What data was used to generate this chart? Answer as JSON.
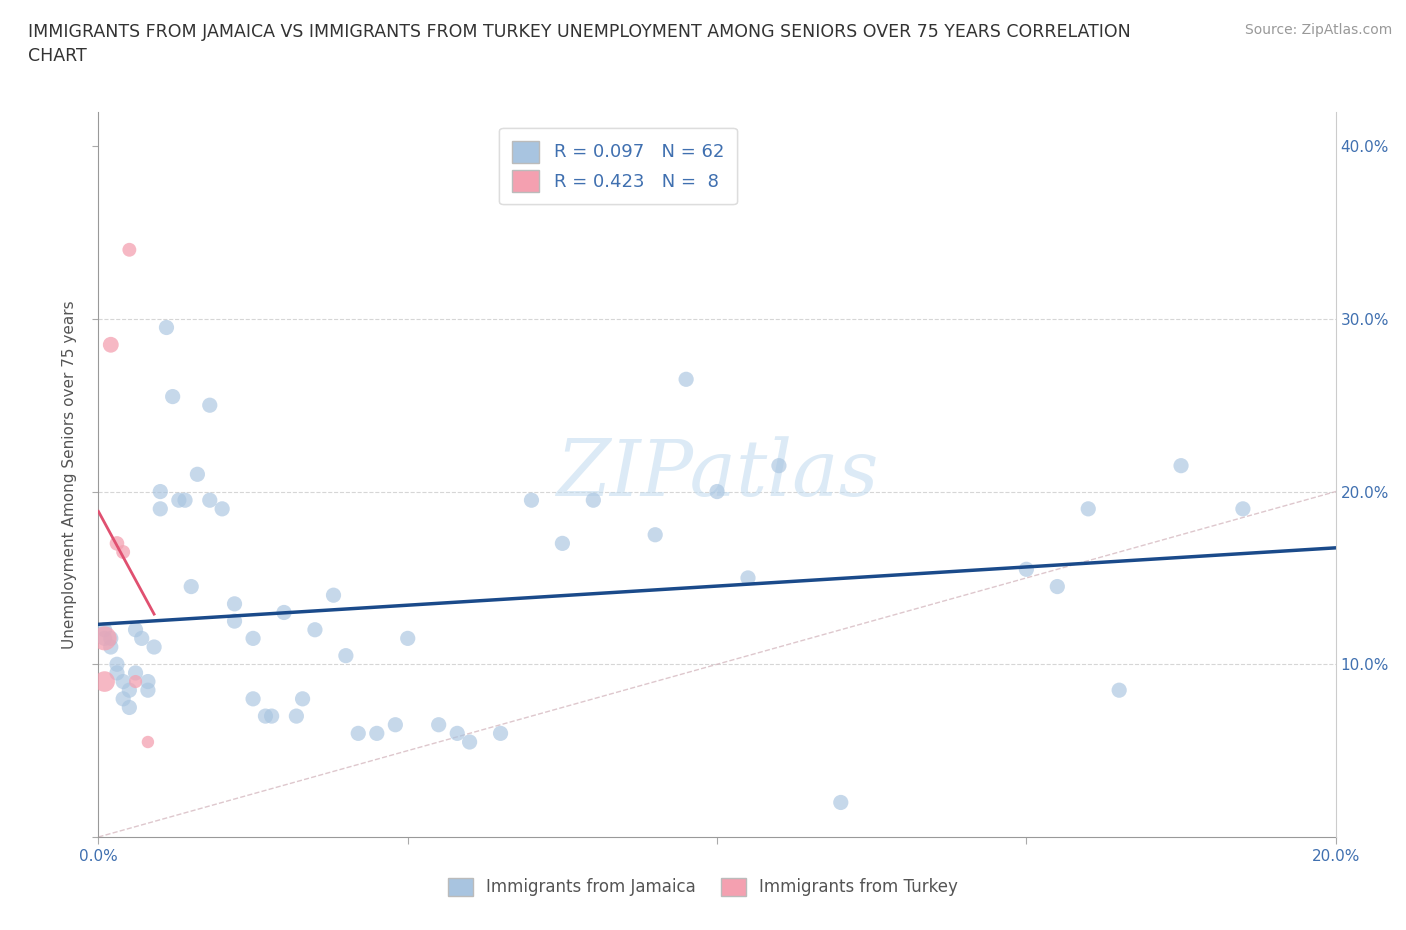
{
  "title": "IMMIGRANTS FROM JAMAICA VS IMMIGRANTS FROM TURKEY UNEMPLOYMENT AMONG SENIORS OVER 75 YEARS CORRELATION\nCHART",
  "source_text": "Source: ZipAtlas.com",
  "ylabel": "Unemployment Among Seniors over 75 years",
  "watermark": "ZIPatlas",
  "xlim": [
    0.0,
    0.2
  ],
  "ylim": [
    0.0,
    0.42
  ],
  "xticks": [
    0.0,
    0.05,
    0.1,
    0.15,
    0.2
  ],
  "yticks": [
    0.0,
    0.1,
    0.2,
    0.3,
    0.4
  ],
  "xtick_labels_bottom": [
    "0.0%",
    "",
    "",
    "",
    "20.0%"
  ],
  "ytick_labels_right": [
    "",
    "10.0%",
    "20.0%",
    "30.0%",
    "40.0%"
  ],
  "jamaica_color": "#a8c4e0",
  "turkey_color": "#f4a0b0",
  "jamaica_line_color": "#1a4a8a",
  "turkey_line_color": "#e05070",
  "diagonal_color": "#d0b0b8",
  "R_jamaica": 0.097,
  "N_jamaica": 62,
  "R_turkey": 0.423,
  "N_turkey": 8,
  "legend_labels": [
    "Immigrants from Jamaica",
    "Immigrants from Turkey"
  ],
  "jamaica_x": [
    0.001,
    0.001,
    0.002,
    0.002,
    0.003,
    0.003,
    0.004,
    0.004,
    0.005,
    0.005,
    0.006,
    0.006,
    0.007,
    0.008,
    0.008,
    0.009,
    0.01,
    0.01,
    0.011,
    0.012,
    0.013,
    0.014,
    0.015,
    0.016,
    0.018,
    0.018,
    0.02,
    0.022,
    0.022,
    0.025,
    0.025,
    0.027,
    0.028,
    0.03,
    0.032,
    0.033,
    0.035,
    0.038,
    0.04,
    0.042,
    0.045,
    0.048,
    0.05,
    0.055,
    0.058,
    0.06,
    0.065,
    0.07,
    0.075,
    0.08,
    0.09,
    0.095,
    0.1,
    0.105,
    0.11,
    0.12,
    0.15,
    0.155,
    0.16,
    0.165,
    0.175,
    0.185
  ],
  "jamaica_y": [
    0.12,
    0.115,
    0.115,
    0.11,
    0.1,
    0.095,
    0.09,
    0.08,
    0.085,
    0.075,
    0.12,
    0.095,
    0.115,
    0.09,
    0.085,
    0.11,
    0.19,
    0.2,
    0.295,
    0.255,
    0.195,
    0.195,
    0.145,
    0.21,
    0.25,
    0.195,
    0.19,
    0.125,
    0.135,
    0.115,
    0.08,
    0.07,
    0.07,
    0.13,
    0.07,
    0.08,
    0.12,
    0.14,
    0.105,
    0.06,
    0.06,
    0.065,
    0.115,
    0.065,
    0.06,
    0.055,
    0.06,
    0.195,
    0.17,
    0.195,
    0.175,
    0.265,
    0.2,
    0.15,
    0.215,
    0.02,
    0.155,
    0.145,
    0.19,
    0.085,
    0.215,
    0.19
  ],
  "turkey_x": [
    0.001,
    0.001,
    0.002,
    0.003,
    0.004,
    0.005,
    0.006,
    0.008
  ],
  "turkey_y": [
    0.115,
    0.09,
    0.285,
    0.17,
    0.165,
    0.34,
    0.09,
    0.055
  ],
  "point_size": 120
}
